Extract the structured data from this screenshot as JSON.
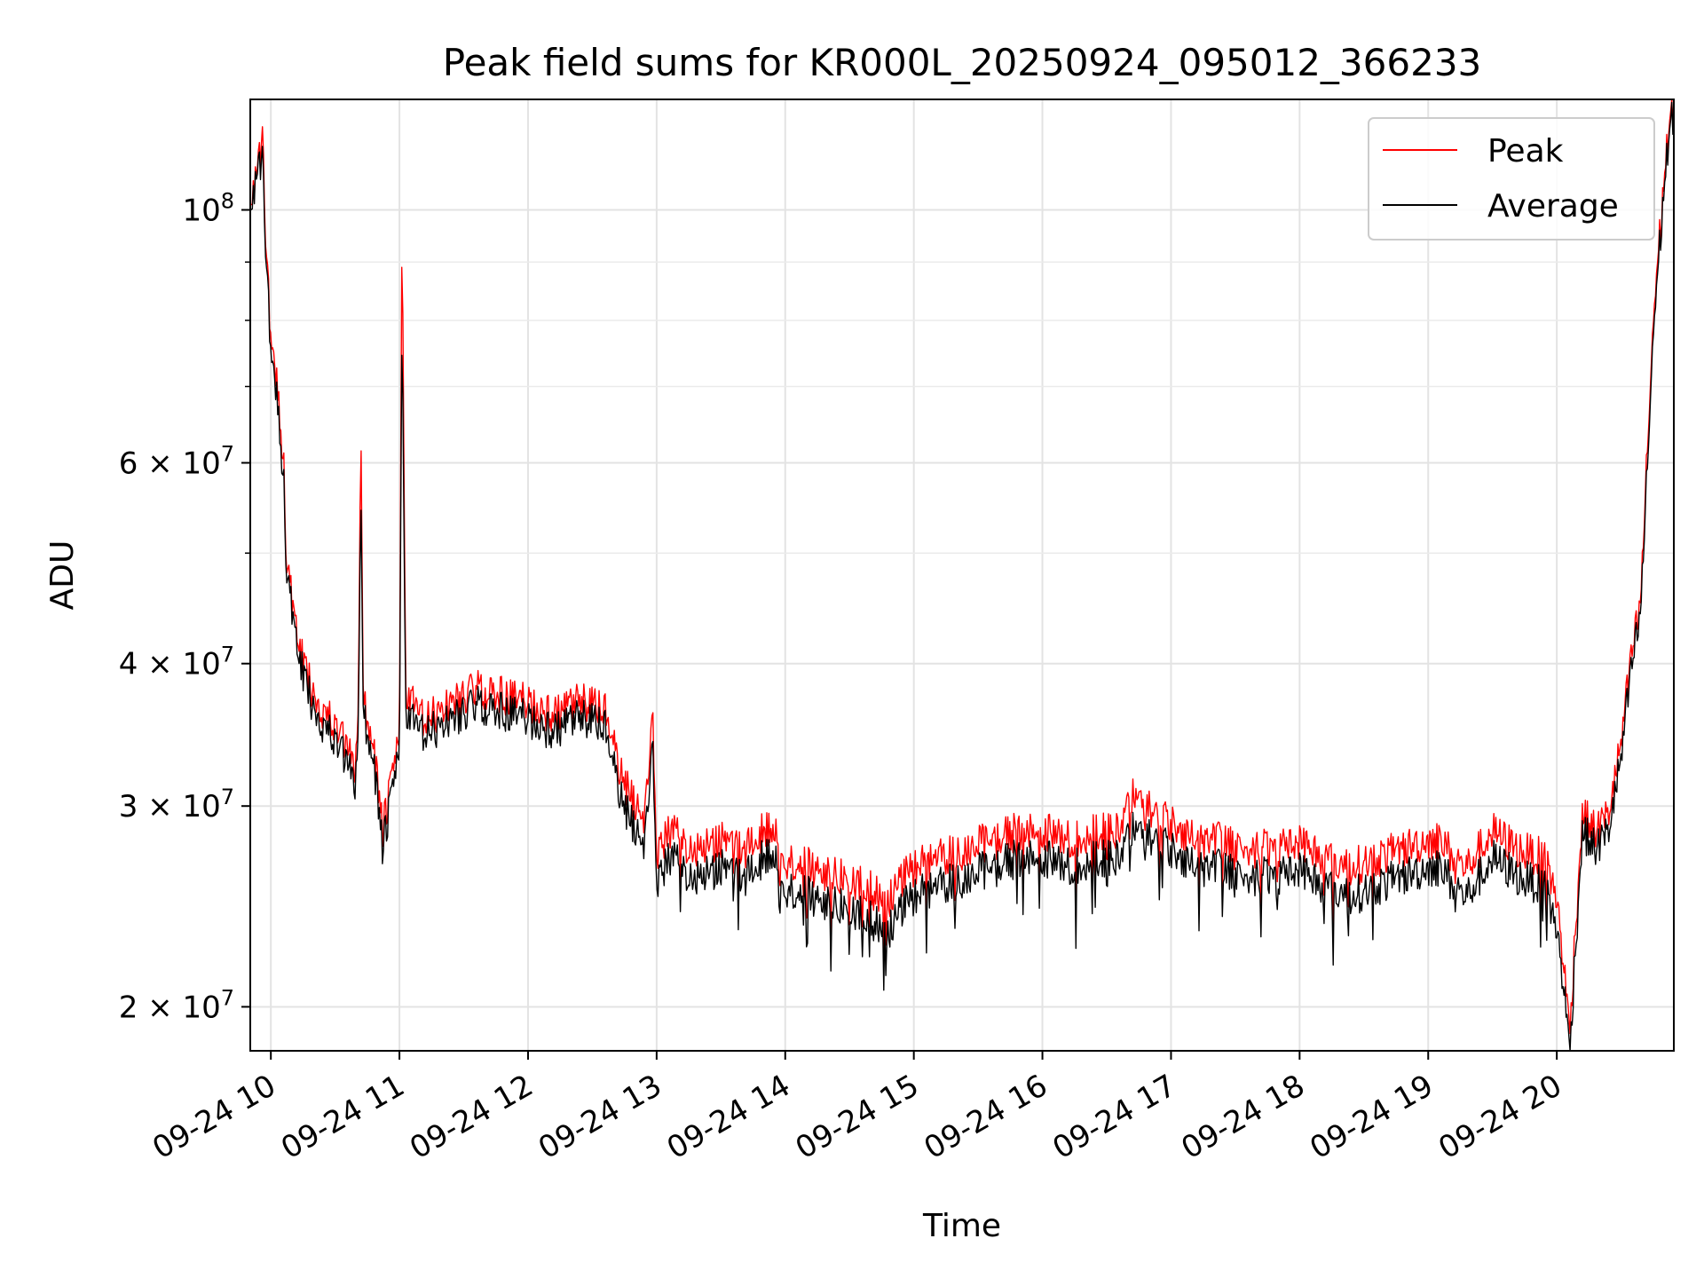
{
  "chart_data": {
    "type": "line",
    "title": "Peak field sums for KR000L_20250924_095012_366233",
    "xlabel": "Time",
    "ylabel": "ADU",
    "y_scale": "log",
    "ylim": [
      18300000,
      125000000
    ],
    "xlim_hours": [
      9.84,
      20.91
    ],
    "grid": true,
    "legend_position": "upper right",
    "x_ticks": [
      {
        "label": "09-24 10",
        "hour": 10
      },
      {
        "label": "09-24 11",
        "hour": 11
      },
      {
        "label": "09-24 12",
        "hour": 12
      },
      {
        "label": "09-24 13",
        "hour": 13
      },
      {
        "label": "09-24 14",
        "hour": 14
      },
      {
        "label": "09-24 15",
        "hour": 15
      },
      {
        "label": "09-24 16",
        "hour": 16
      },
      {
        "label": "09-24 17",
        "hour": 17
      },
      {
        "label": "09-24 18",
        "hour": 18
      },
      {
        "label": "09-24 19",
        "hour": 19
      },
      {
        "label": "09-24 20",
        "hour": 20
      }
    ],
    "y_ticks_major": [
      {
        "value": 20000000,
        "mantissa": "2",
        "base": "10",
        "exp": "7"
      },
      {
        "value": 30000000,
        "mantissa": "3",
        "base": "10",
        "exp": "7"
      },
      {
        "value": 40000000,
        "mantissa": "4",
        "base": "10",
        "exp": "7"
      },
      {
        "value": 60000000,
        "mantissa": "6",
        "base": "10",
        "exp": "7"
      },
      {
        "value": 100000000,
        "mantissa": "",
        "base": "10",
        "exp": "8"
      }
    ],
    "y_ticks_minor": [
      50000000,
      70000000,
      80000000,
      90000000
    ],
    "series": [
      {
        "name": "Peak",
        "color": "#ff0000",
        "points": [
          [
            9.84,
            103000000
          ],
          [
            9.9,
            108000000
          ],
          [
            9.94,
            116000000
          ],
          [
            9.96,
            95000000
          ],
          [
            10.0,
            76000000
          ],
          [
            10.05,
            71000000
          ],
          [
            10.1,
            60000000
          ],
          [
            10.12,
            50000000
          ],
          [
            10.2,
            42000000
          ],
          [
            10.3,
            38500000
          ],
          [
            10.4,
            36500000
          ],
          [
            10.5,
            35200000
          ],
          [
            10.6,
            33500000
          ],
          [
            10.65,
            32000000
          ],
          [
            10.68,
            36000000
          ],
          [
            10.7,
            66000000
          ],
          [
            10.72,
            37000000
          ],
          [
            10.8,
            34000000
          ],
          [
            10.87,
            28500000
          ],
          [
            10.93,
            31000000
          ],
          [
            11.0,
            35000000
          ],
          [
            11.02,
            97000000
          ],
          [
            11.05,
            37500000
          ],
          [
            11.2,
            35500000
          ],
          [
            11.4,
            37000000
          ],
          [
            11.6,
            38000000
          ],
          [
            11.8,
            37500000
          ],
          [
            12.0,
            37000000
          ],
          [
            12.2,
            36000000
          ],
          [
            12.4,
            37000000
          ],
          [
            12.6,
            36500000
          ],
          [
            12.7,
            32500000
          ],
          [
            12.8,
            30500000
          ],
          [
            12.9,
            29500000
          ],
          [
            12.97,
            35500000
          ],
          [
            13.0,
            27000000
          ],
          [
            13.1,
            28500000
          ],
          [
            13.3,
            27500000
          ],
          [
            13.5,
            28000000
          ],
          [
            13.7,
            27500000
          ],
          [
            13.9,
            29000000
          ],
          [
            14.0,
            27000000
          ],
          [
            14.2,
            26500000
          ],
          [
            14.4,
            26000000
          ],
          [
            14.6,
            25500000
          ],
          [
            14.8,
            25000000
          ],
          [
            15.0,
            26500000
          ],
          [
            15.2,
            27000000
          ],
          [
            15.4,
            27500000
          ],
          [
            15.6,
            28000000
          ],
          [
            15.8,
            28500000
          ],
          [
            16.0,
            28500000
          ],
          [
            16.2,
            28000000
          ],
          [
            16.4,
            28500000
          ],
          [
            16.6,
            28500000
          ],
          [
            16.7,
            30500000
          ],
          [
            16.9,
            29500000
          ],
          [
            17.0,
            29000000
          ],
          [
            17.2,
            28000000
          ],
          [
            17.4,
            28000000
          ],
          [
            17.6,
            27500000
          ],
          [
            17.8,
            27500000
          ],
          [
            18.0,
            28000000
          ],
          [
            18.2,
            27000000
          ],
          [
            18.4,
            26500000
          ],
          [
            18.6,
            27000000
          ],
          [
            18.8,
            27500000
          ],
          [
            19.0,
            28000000
          ],
          [
            19.1,
            28000000
          ],
          [
            19.2,
            27000000
          ],
          [
            19.3,
            26500000
          ],
          [
            19.4,
            27500000
          ],
          [
            19.5,
            28500000
          ],
          [
            19.7,
            27500000
          ],
          [
            19.9,
            27000000
          ],
          [
            20.0,
            25000000
          ],
          [
            20.05,
            22000000
          ],
          [
            20.1,
            19000000
          ],
          [
            20.15,
            24000000
          ],
          [
            20.2,
            29500000
          ],
          [
            20.3,
            28500000
          ],
          [
            20.4,
            29500000
          ],
          [
            20.5,
            34000000
          ],
          [
            20.55,
            38000000
          ],
          [
            20.6,
            42000000
          ],
          [
            20.65,
            45000000
          ],
          [
            20.7,
            60000000
          ],
          [
            20.75,
            80000000
          ],
          [
            20.8,
            95000000
          ],
          [
            20.85,
            112000000
          ],
          [
            20.91,
            125000000
          ]
        ]
      },
      {
        "name": "Average",
        "color": "#000000",
        "points": [
          [
            9.84,
            102000000
          ],
          [
            9.9,
            107000000
          ],
          [
            9.94,
            111000000
          ],
          [
            9.96,
            93000000
          ],
          [
            10.0,
            74000000
          ],
          [
            10.05,
            69000000
          ],
          [
            10.1,
            58000000
          ],
          [
            10.12,
            49000000
          ],
          [
            10.2,
            41000000
          ],
          [
            10.3,
            37500000
          ],
          [
            10.4,
            35500000
          ],
          [
            10.5,
            34200000
          ],
          [
            10.6,
            32500000
          ],
          [
            10.65,
            31000000
          ],
          [
            10.68,
            34500000
          ],
          [
            10.7,
            58000000
          ],
          [
            10.72,
            36000000
          ],
          [
            10.8,
            33000000
          ],
          [
            10.87,
            27500000
          ],
          [
            10.93,
            30000000
          ],
          [
            11.0,
            34000000
          ],
          [
            11.02,
            80000000
          ],
          [
            11.05,
            36000000
          ],
          [
            11.2,
            34500000
          ],
          [
            11.4,
            35800000
          ],
          [
            11.6,
            36800000
          ],
          [
            11.8,
            36300000
          ],
          [
            12.0,
            35800000
          ],
          [
            12.2,
            34800000
          ],
          [
            12.4,
            35800000
          ],
          [
            12.6,
            35300000
          ],
          [
            12.7,
            31000000
          ],
          [
            12.8,
            29000000
          ],
          [
            12.9,
            28000000
          ],
          [
            12.97,
            33500000
          ],
          [
            13.0,
            25500000
          ],
          [
            13.1,
            27000000
          ],
          [
            13.3,
            26000000
          ],
          [
            13.5,
            26500000
          ],
          [
            13.7,
            26000000
          ],
          [
            13.9,
            27500000
          ],
          [
            14.0,
            25500000
          ],
          [
            14.2,
            25000000
          ],
          [
            14.4,
            24500000
          ],
          [
            14.6,
            24000000
          ],
          [
            14.8,
            23500000
          ],
          [
            15.0,
            25000000
          ],
          [
            15.2,
            25500000
          ],
          [
            15.4,
            26000000
          ],
          [
            15.6,
            26500000
          ],
          [
            15.8,
            27000000
          ],
          [
            16.0,
            27000000
          ],
          [
            16.2,
            26500000
          ],
          [
            16.4,
            27000000
          ],
          [
            16.6,
            27000000
          ],
          [
            16.7,
            28500000
          ],
          [
            16.9,
            28000000
          ],
          [
            17.0,
            27500000
          ],
          [
            17.2,
            26500000
          ],
          [
            17.4,
            26500000
          ],
          [
            17.6,
            26000000
          ],
          [
            17.8,
            26000000
          ],
          [
            18.0,
            26500000
          ],
          [
            18.2,
            25500000
          ],
          [
            18.4,
            25000000
          ],
          [
            18.6,
            25500000
          ],
          [
            18.8,
            26000000
          ],
          [
            19.0,
            26500000
          ],
          [
            19.1,
            26500000
          ],
          [
            19.2,
            25500000
          ],
          [
            19.3,
            25000000
          ],
          [
            19.4,
            26000000
          ],
          [
            19.5,
            27000000
          ],
          [
            19.7,
            26000000
          ],
          [
            19.9,
            25500000
          ],
          [
            20.0,
            23500000
          ],
          [
            20.05,
            21000000
          ],
          [
            20.1,
            18300000
          ],
          [
            20.15,
            23000000
          ],
          [
            20.2,
            28500000
          ],
          [
            20.3,
            27500000
          ],
          [
            20.4,
            28500000
          ],
          [
            20.5,
            33000000
          ],
          [
            20.55,
            37000000
          ],
          [
            20.6,
            41000000
          ],
          [
            20.65,
            44000000
          ],
          [
            20.7,
            58000000
          ],
          [
            20.75,
            78000000
          ],
          [
            20.8,
            93000000
          ],
          [
            20.85,
            110000000
          ],
          [
            20.91,
            123000000
          ]
        ]
      }
    ]
  }
}
